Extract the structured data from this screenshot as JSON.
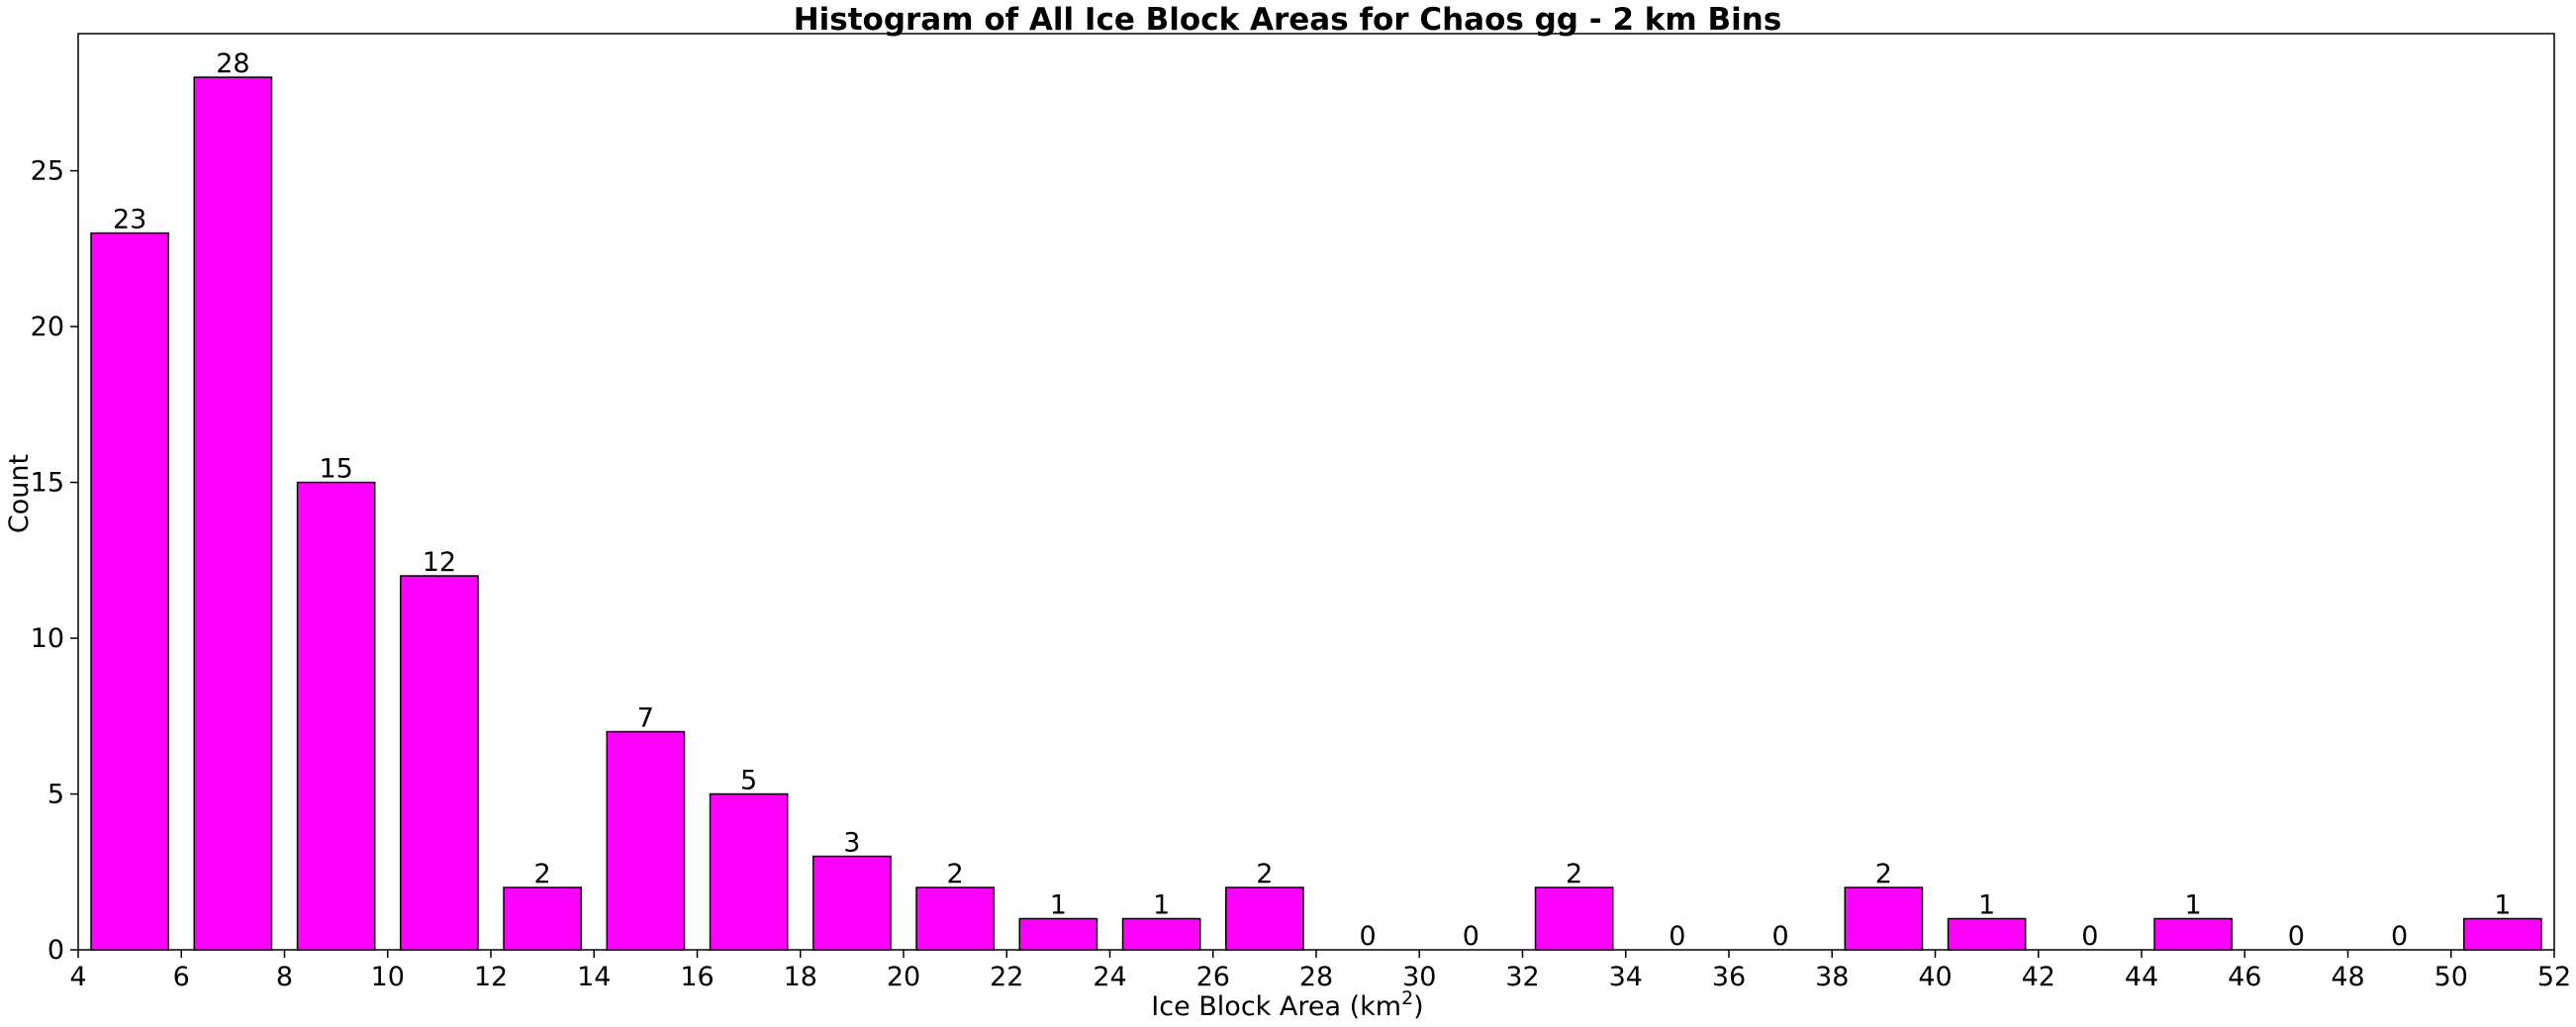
{
  "chart_data": {
    "type": "bar",
    "title": "Histogram of All Ice Block Areas for Chaos gg - 2 km Bins",
    "xlabel": "Ice Block Area (km",
    "xlabel_superscript": "2",
    "xlabel_suffix": ")",
    "ylabel": "Count",
    "bar_color": "#ff00ff",
    "edge_color": "#000000",
    "xlim": [
      4,
      52
    ],
    "ylim": [
      0,
      29.4
    ],
    "x_ticks": [
      4,
      6,
      8,
      10,
      12,
      14,
      16,
      18,
      20,
      22,
      24,
      26,
      28,
      30,
      32,
      34,
      36,
      38,
      40,
      42,
      44,
      46,
      48,
      50,
      52
    ],
    "y_ticks": [
      0,
      5,
      10,
      15,
      20,
      25
    ],
    "bin_width": 2,
    "bar_width": 1.5,
    "bins": [
      {
        "start": 4,
        "count": 23
      },
      {
        "start": 6,
        "count": 28
      },
      {
        "start": 8,
        "count": 15
      },
      {
        "start": 10,
        "count": 12
      },
      {
        "start": 12,
        "count": 2
      },
      {
        "start": 14,
        "count": 7
      },
      {
        "start": 16,
        "count": 5
      },
      {
        "start": 18,
        "count": 3
      },
      {
        "start": 20,
        "count": 2
      },
      {
        "start": 22,
        "count": 1
      },
      {
        "start": 24,
        "count": 1
      },
      {
        "start": 26,
        "count": 2
      },
      {
        "start": 28,
        "count": 0
      },
      {
        "start": 30,
        "count": 0
      },
      {
        "start": 32,
        "count": 2
      },
      {
        "start": 34,
        "count": 0
      },
      {
        "start": 36,
        "count": 0
      },
      {
        "start": 38,
        "count": 2
      },
      {
        "start": 40,
        "count": 1
      },
      {
        "start": 42,
        "count": 0
      },
      {
        "start": 44,
        "count": 1
      },
      {
        "start": 46,
        "count": 0
      },
      {
        "start": 48,
        "count": 0
      },
      {
        "start": 50,
        "count": 1
      }
    ],
    "grid": false,
    "legend": "none"
  }
}
